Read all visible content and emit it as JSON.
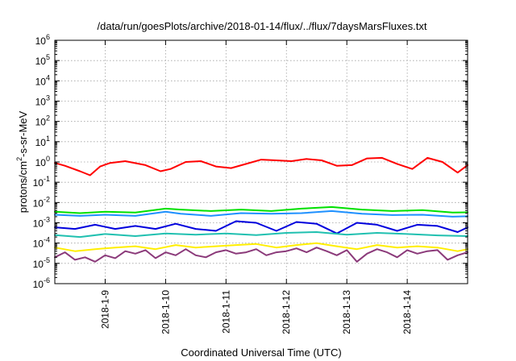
{
  "chart_data": {
    "type": "line",
    "title": "/data/run/goesPlots/archive/2018-01-14/flux/../flux/7daysMarsFluxes.txt",
    "xlabel": "Coordinated Universal Time (UTC)",
    "ylabel": {
      "base": "protons/cm",
      "exponent": "2",
      "rest": "-s-sr-MeV"
    },
    "y_scale": "log",
    "ylim": [
      1e-06,
      1000000.0
    ],
    "y_ticks": [
      {
        "value": 1e-06,
        "base": "10",
        "exp": "-6"
      },
      {
        "value": 1e-05,
        "base": "10",
        "exp": "-5"
      },
      {
        "value": 0.0001,
        "base": "10",
        "exp": "-4"
      },
      {
        "value": 0.001,
        "base": "10",
        "exp": "-3"
      },
      {
        "value": 0.01,
        "base": "10",
        "exp": "-2"
      },
      {
        "value": 0.1,
        "base": "10",
        "exp": "-1"
      },
      {
        "value": 1,
        "base": "10",
        "exp": "0"
      },
      {
        "value": 10,
        "base": "10",
        "exp": "1"
      },
      {
        "value": 100,
        "base": "10",
        "exp": "2"
      },
      {
        "value": 1000,
        "base": "10",
        "exp": "3"
      },
      {
        "value": 10000,
        "base": "10",
        "exp": "4"
      },
      {
        "value": 100000,
        "base": "10",
        "exp": "5"
      },
      {
        "value": 1000000,
        "base": "10",
        "exp": "6"
      }
    ],
    "xlim": [
      "2018-01-08T04:00",
      "2018-01-14T23:59"
    ],
    "x_ticks": [
      "2018-1-9",
      "2018-1-10",
      "2018-1-11",
      "2018-1-12",
      "2018-1-13",
      "2018-1-14"
    ],
    "grid": true,
    "legend": "none",
    "series": [
      {
        "color": "#ff0000",
        "x": [
          "2018-01-08T04:00",
          "2018-01-08T08:00",
          "2018-01-08T14:00",
          "2018-01-08T18:00",
          "2018-01-08T22:00",
          "2018-01-09T02:00",
          "2018-01-09T08:00",
          "2018-01-09T16:00",
          "2018-01-09T22:00",
          "2018-01-10T02:00",
          "2018-01-10T08:00",
          "2018-01-10T14:00",
          "2018-01-10T20:00",
          "2018-01-11T02:00",
          "2018-01-11T08:00",
          "2018-01-11T14:00",
          "2018-01-11T20:00",
          "2018-01-12T02:00",
          "2018-01-12T08:00",
          "2018-01-12T14:00",
          "2018-01-12T20:00",
          "2018-01-13T02:00",
          "2018-01-13T08:00",
          "2018-01-13T14:00",
          "2018-01-13T20:00",
          "2018-01-14T02:00",
          "2018-01-14T08:00",
          "2018-01-14T14:00",
          "2018-01-14T20:00",
          "2018-01-14T23:59"
        ],
        "values": [
          0.9,
          0.65,
          0.35,
          0.22,
          0.6,
          0.9,
          1.1,
          0.7,
          0.35,
          0.45,
          1.0,
          1.1,
          0.6,
          0.5,
          0.8,
          1.3,
          1.2,
          1.1,
          1.4,
          1.2,
          0.65,
          0.7,
          1.5,
          1.6,
          0.8,
          0.45,
          1.6,
          1.0,
          0.3,
          0.7
        ]
      },
      {
        "color": "#00e000",
        "x": [
          "2018-01-08T04:00",
          "2018-01-08T14:00",
          "2018-01-09T00:00",
          "2018-01-09T12:00",
          "2018-01-10T00:00",
          "2018-01-10T06:00",
          "2018-01-10T18:00",
          "2018-01-11T06:00",
          "2018-01-11T18:00",
          "2018-01-12T06:00",
          "2018-01-12T18:00",
          "2018-01-13T06:00",
          "2018-01-13T18:00",
          "2018-01-14T06:00",
          "2018-01-14T18:00",
          "2018-01-14T23:59"
        ],
        "values": [
          0.0035,
          0.003,
          0.0035,
          0.0032,
          0.005,
          0.0045,
          0.0038,
          0.0045,
          0.0038,
          0.005,
          0.006,
          0.0045,
          0.0038,
          0.0042,
          0.0032,
          0.0033
        ]
      },
      {
        "color": "#1e90ff",
        "x": [
          "2018-01-08T04:00",
          "2018-01-08T14:00",
          "2018-01-09T00:00",
          "2018-01-09T12:00",
          "2018-01-10T00:00",
          "2018-01-10T06:00",
          "2018-01-10T18:00",
          "2018-01-11T06:00",
          "2018-01-11T18:00",
          "2018-01-12T06:00",
          "2018-01-12T18:00",
          "2018-01-13T06:00",
          "2018-01-13T18:00",
          "2018-01-14T06:00",
          "2018-01-14T18:00",
          "2018-01-14T23:59"
        ],
        "values": [
          0.0025,
          0.0022,
          0.0025,
          0.0022,
          0.0035,
          0.0028,
          0.0022,
          0.003,
          0.0028,
          0.003,
          0.0038,
          0.0028,
          0.0024,
          0.0025,
          0.002,
          0.0021
        ]
      },
      {
        "color": "#0000dd",
        "x": [
          "2018-01-08T04:00",
          "2018-01-08T12:00",
          "2018-01-08T20:00",
          "2018-01-09T04:00",
          "2018-01-09T12:00",
          "2018-01-09T20:00",
          "2018-01-10T04:00",
          "2018-01-10T12:00",
          "2018-01-10T20:00",
          "2018-01-11T04:00",
          "2018-01-11T12:00",
          "2018-01-11T20:00",
          "2018-01-12T04:00",
          "2018-01-12T12:00",
          "2018-01-12T20:00",
          "2018-01-13T04:00",
          "2018-01-13T12:00",
          "2018-01-13T20:00",
          "2018-01-14T04:00",
          "2018-01-14T12:00",
          "2018-01-14T20:00",
          "2018-01-14T23:59"
        ],
        "values": [
          0.0006,
          0.0005,
          0.0008,
          0.0005,
          0.0007,
          0.0005,
          0.0009,
          0.0005,
          0.0004,
          0.0012,
          0.001,
          0.0004,
          0.0011,
          0.0009,
          0.0003,
          0.001,
          0.0008,
          0.0004,
          0.0008,
          0.0007,
          0.00035,
          0.0006
        ]
      },
      {
        "color": "#20c0b0",
        "x": [
          "2018-01-08T04:00",
          "2018-01-08T14:00",
          "2018-01-09T00:00",
          "2018-01-09T12:00",
          "2018-01-10T00:00",
          "2018-01-10T12:00",
          "2018-01-11T00:00",
          "2018-01-11T12:00",
          "2018-01-12T00:00",
          "2018-01-12T12:00",
          "2018-01-13T00:00",
          "2018-01-13T12:00",
          "2018-01-14T00:00",
          "2018-01-14T12:00",
          "2018-01-14T23:59"
        ],
        "values": [
          0.00025,
          0.0002,
          0.00028,
          0.00022,
          0.0003,
          0.00026,
          0.0003,
          0.00025,
          0.00032,
          0.00035,
          0.00026,
          0.00032,
          0.00028,
          0.00024,
          0.00022
        ]
      },
      {
        "color": "#ffee00",
        "x": [
          "2018-01-08T04:00",
          "2018-01-08T12:00",
          "2018-01-08T20:00",
          "2018-01-09T04:00",
          "2018-01-09T12:00",
          "2018-01-09T20:00",
          "2018-01-10T04:00",
          "2018-01-10T12:00",
          "2018-01-10T20:00",
          "2018-01-11T04:00",
          "2018-01-11T12:00",
          "2018-01-11T20:00",
          "2018-01-12T04:00",
          "2018-01-12T12:00",
          "2018-01-12T20:00",
          "2018-01-13T04:00",
          "2018-01-13T12:00",
          "2018-01-13T20:00",
          "2018-01-14T04:00",
          "2018-01-14T12:00",
          "2018-01-14T20:00",
          "2018-01-14T23:59"
        ],
        "values": [
          6e-05,
          4e-05,
          5e-05,
          6e-05,
          7e-05,
          5e-05,
          8e-05,
          6e-05,
          7e-05,
          8e-05,
          9e-05,
          6e-05,
          8e-05,
          0.0001,
          7e-05,
          5e-05,
          8e-05,
          6e-05,
          7e-05,
          6e-05,
          4e-05,
          5e-05
        ]
      },
      {
        "color": "#8b3a7a",
        "x": [
          "2018-01-08T04:00",
          "2018-01-08T08:00",
          "2018-01-08T12:00",
          "2018-01-08T16:00",
          "2018-01-08T20:00",
          "2018-01-09T00:00",
          "2018-01-09T04:00",
          "2018-01-09T08:00",
          "2018-01-09T12:00",
          "2018-01-09T16:00",
          "2018-01-09T20:00",
          "2018-01-10T00:00",
          "2018-01-10T04:00",
          "2018-01-10T08:00",
          "2018-01-10T12:00",
          "2018-01-10T16:00",
          "2018-01-10T20:00",
          "2018-01-11T00:00",
          "2018-01-11T04:00",
          "2018-01-11T08:00",
          "2018-01-11T12:00",
          "2018-01-11T16:00",
          "2018-01-11T20:00",
          "2018-01-12T00:00",
          "2018-01-12T04:00",
          "2018-01-12T08:00",
          "2018-01-12T12:00",
          "2018-01-12T16:00",
          "2018-01-12T20:00",
          "2018-01-13T00:00",
          "2018-01-13T04:00",
          "2018-01-13T08:00",
          "2018-01-13T12:00",
          "2018-01-13T16:00",
          "2018-01-13T20:00",
          "2018-01-14T00:00",
          "2018-01-14T04:00",
          "2018-01-14T08:00",
          "2018-01-14T12:00",
          "2018-01-14T16:00",
          "2018-01-14T20:00",
          "2018-01-14T23:59"
        ],
        "values": [
          2e-05,
          3.5e-05,
          1.5e-05,
          2e-05,
          1.2e-05,
          2.5e-05,
          1.8e-05,
          4e-05,
          3e-05,
          4.5e-05,
          1.8e-05,
          3.5e-05,
          2.5e-05,
          5e-05,
          2.5e-05,
          2e-05,
          3.5e-05,
          4.5e-05,
          3e-05,
          3.5e-05,
          5e-05,
          2.5e-05,
          3.5e-05,
          4e-05,
          5.5e-05,
          3.5e-05,
          6e-05,
          4e-05,
          2.5e-05,
          4.5e-05,
          1.2e-05,
          3e-05,
          5e-05,
          3.5e-05,
          2e-05,
          4.5e-05,
          3e-05,
          4e-05,
          4.5e-05,
          1.5e-05,
          2.5e-05,
          3.5e-05
        ]
      }
    ]
  }
}
